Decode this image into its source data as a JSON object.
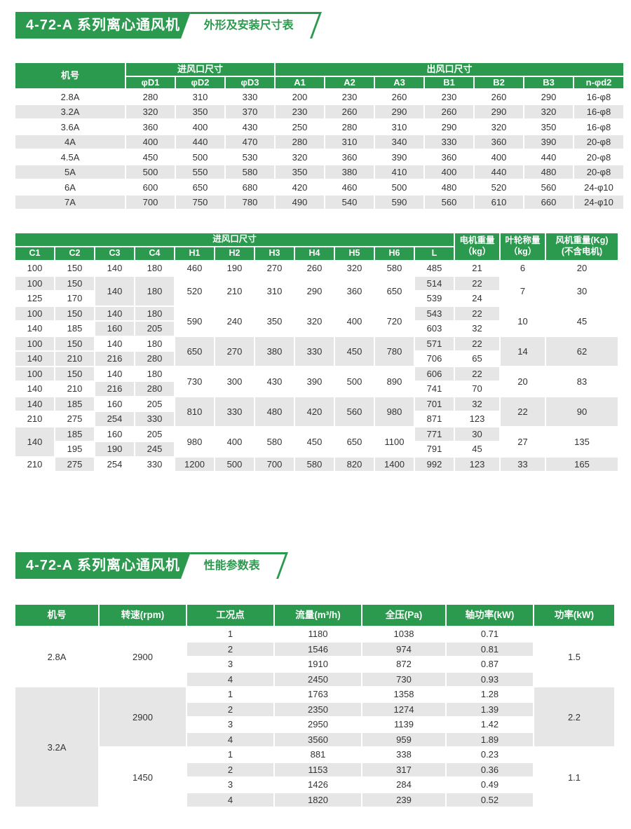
{
  "colors": {
    "green": "#2b9a4e",
    "stripe": "#e6e6e6",
    "text": "#333333",
    "page_bg": "#ffffff"
  },
  "banners": [
    {
      "title": "4-72-A 系列离心通风机",
      "tag": "外形及安装尺寸表"
    },
    {
      "title": "4-72-A 系列离心通风机",
      "tag": "性能参数表"
    }
  ],
  "table1": {
    "header": {
      "model": "机号",
      "inlet_group": "进风口尺寸",
      "outlet_group": "出风口尺寸",
      "cols": [
        "φD1",
        "φD2",
        "φD3",
        "A1",
        "A2",
        "A3",
        "B1",
        "B2",
        "B3",
        "n-φd2"
      ]
    },
    "rows": [
      [
        "2.8A",
        "280",
        "310",
        "330",
        "200",
        "230",
        "260",
        "230",
        "260",
        "290",
        "16-φ8"
      ],
      [
        "3.2A",
        "320",
        "350",
        "370",
        "230",
        "260",
        "290",
        "260",
        "290",
        "320",
        "16-φ8"
      ],
      [
        "3.6A",
        "360",
        "400",
        "430",
        "250",
        "280",
        "310",
        "290",
        "320",
        "350",
        "16-φ8"
      ],
      [
        "4A",
        "400",
        "440",
        "470",
        "280",
        "310",
        "340",
        "330",
        "360",
        "390",
        "20-φ8"
      ],
      [
        "4.5A",
        "450",
        "500",
        "530",
        "320",
        "360",
        "390",
        "360",
        "400",
        "440",
        "20-φ8"
      ],
      [
        "5A",
        "500",
        "550",
        "580",
        "350",
        "380",
        "410",
        "400",
        "440",
        "480",
        "20-φ8"
      ],
      [
        "6A",
        "600",
        "650",
        "680",
        "420",
        "460",
        "500",
        "480",
        "520",
        "560",
        "24-φ10"
      ],
      [
        "7A",
        "700",
        "750",
        "780",
        "490",
        "540",
        "590",
        "560",
        "610",
        "660",
        "24-φ10"
      ]
    ]
  },
  "table2": {
    "header": {
      "inlet_group": "进风口尺寸",
      "cols": [
        "C1",
        "C2",
        "C3",
        "C4",
        "H1",
        "H2",
        "H3",
        "H4",
        "H5",
        "H6",
        "L"
      ],
      "motor": {
        "l1": "电机重量",
        "l2": "（kg）"
      },
      "impeller": {
        "l1": "叶轮称量",
        "l2": "（kg）"
      },
      "fan": {
        "l1": "风机重量(Kg)",
        "l2": "(不含电机)"
      }
    },
    "rows": [
      [
        "100",
        "150",
        "140",
        "180",
        "460",
        "190",
        "270",
        "260",
        "320",
        "580",
        "485",
        "21",
        "6",
        "20"
      ],
      [
        [
          "100",
          1,
          1
        ],
        [
          "150",
          1,
          1
        ],
        [
          "140",
          2,
          1
        ],
        [
          "180",
          2,
          1
        ],
        [
          "520",
          2,
          0
        ],
        [
          "210",
          2,
          0
        ],
        [
          "310",
          2,
          0
        ],
        [
          "290",
          2,
          0
        ],
        [
          "360",
          2,
          0
        ],
        [
          "650",
          2,
          0
        ],
        [
          "514",
          1,
          1
        ],
        [
          "22",
          1,
          1
        ],
        [
          "7",
          2,
          0
        ],
        [
          "30",
          2,
          0
        ]
      ],
      [
        "125",
        "170",
        "539",
        "24"
      ],
      [
        [
          "100",
          1,
          1
        ],
        [
          "150",
          1,
          1
        ],
        [
          "140",
          1,
          1
        ],
        [
          "180",
          1,
          1
        ],
        [
          "590",
          2,
          0
        ],
        [
          "240",
          2,
          0
        ],
        [
          "350",
          2,
          0
        ],
        [
          "320",
          2,
          0
        ],
        [
          "400",
          2,
          0
        ],
        [
          "720",
          2,
          0
        ],
        [
          "543",
          1,
          1
        ],
        [
          "22",
          1,
          1
        ],
        [
          "10",
          2,
          0
        ],
        [
          "45",
          2,
          0
        ]
      ],
      [
        "140",
        "185",
        [
          "160",
          1,
          1
        ],
        [
          "205",
          1,
          1
        ],
        "603",
        "32"
      ],
      [
        [
          "100",
          1,
          1
        ],
        [
          "150",
          1,
          1
        ],
        "140",
        "180",
        [
          "650",
          2,
          1
        ],
        [
          "270",
          2,
          1
        ],
        [
          "380",
          2,
          1
        ],
        [
          "330",
          2,
          1
        ],
        [
          "450",
          2,
          1
        ],
        [
          "780",
          2,
          1
        ],
        [
          "571",
          1,
          1
        ],
        [
          "22",
          1,
          1
        ],
        [
          "14",
          2,
          1
        ],
        [
          "62",
          2,
          1
        ]
      ],
      [
        [
          "140",
          1,
          1
        ],
        [
          "210",
          1,
          1
        ],
        [
          "216",
          1,
          1
        ],
        [
          "280",
          1,
          1
        ],
        "706",
        "65"
      ],
      [
        [
          "100",
          1,
          1
        ],
        [
          "150",
          1,
          1
        ],
        "140",
        "180",
        [
          "730",
          2,
          0
        ],
        [
          "300",
          2,
          0
        ],
        [
          "430",
          2,
          0
        ],
        [
          "390",
          2,
          0
        ],
        [
          "500",
          2,
          0
        ],
        [
          "890",
          2,
          0
        ],
        [
          "606",
          1,
          1
        ],
        [
          "22",
          1,
          1
        ],
        [
          "20",
          2,
          0
        ],
        [
          "83",
          2,
          0
        ]
      ],
      [
        "140",
        "210",
        [
          "216",
          1,
          1
        ],
        [
          "280",
          1,
          1
        ],
        "741",
        "70"
      ],
      [
        [
          "140",
          1,
          1
        ],
        [
          "185",
          1,
          1
        ],
        "160",
        "205",
        [
          "810",
          2,
          1
        ],
        [
          "330",
          2,
          1
        ],
        [
          "480",
          2,
          1
        ],
        [
          "420",
          2,
          1
        ],
        [
          "560",
          2,
          1
        ],
        [
          "980",
          2,
          1
        ],
        [
          "701",
          1,
          1
        ],
        [
          "32",
          1,
          1
        ],
        [
          "22",
          2,
          1
        ],
        [
          "90",
          2,
          1
        ]
      ],
      [
        "210",
        "275",
        [
          "254",
          1,
          1
        ],
        [
          "330",
          1,
          1
        ],
        "871",
        "123"
      ],
      [
        [
          "140",
          2,
          1
        ],
        [
          "185",
          1,
          1
        ],
        "160",
        "205",
        [
          "980",
          2,
          0
        ],
        [
          "400",
          2,
          0
        ],
        [
          "580",
          2,
          0
        ],
        [
          "450",
          2,
          0
        ],
        [
          "650",
          2,
          0
        ],
        [
          "1100",
          2,
          0
        ],
        [
          "771",
          1,
          1
        ],
        [
          "30",
          1,
          1
        ],
        [
          "27",
          2,
          0
        ],
        [
          "135",
          2,
          0
        ]
      ],
      [
        "195",
        [
          "190",
          1,
          1
        ],
        [
          "245",
          1,
          1
        ],
        "791",
        "45"
      ],
      [
        "210",
        [
          "275",
          1,
          1
        ],
        "254",
        "330",
        [
          "1200",
          1,
          1
        ],
        [
          "500",
          1,
          1
        ],
        [
          "700",
          1,
          1
        ],
        [
          "580",
          1,
          1
        ],
        [
          "820",
          1,
          1
        ],
        [
          "1400",
          1,
          1
        ],
        [
          "992",
          1,
          1
        ],
        [
          "123",
          1,
          1
        ],
        [
          "33",
          1,
          1
        ],
        [
          "165",
          1,
          1
        ]
      ]
    ]
  },
  "table3": {
    "headers": [
      "机号",
      "转速(rpm)",
      "工况点",
      "流量(m³/h)",
      "全压(Pa)",
      "轴功率(kW)",
      "功率(kW)"
    ],
    "groups": [
      {
        "model": "2.8A",
        "model_rows": 4,
        "model_shade": 0,
        "speed": "2900",
        "speed_shade": 0,
        "power": "1.5",
        "power_shade": 0,
        "rows": [
          [
            "1",
            "1180",
            "1038",
            "0.71"
          ],
          [
            "2",
            "1546",
            "974",
            "0.81"
          ],
          [
            "3",
            "1910",
            "872",
            "0.87"
          ],
          [
            "4",
            "2450",
            "730",
            "0.93"
          ]
        ]
      },
      {
        "model": "3.2A",
        "model_rows": 8,
        "model_shade": 1,
        "speed": "2900",
        "speed_shade": 1,
        "power": "2.2",
        "power_shade": 1,
        "rows": [
          [
            "1",
            "1763",
            "1358",
            "1.28"
          ],
          [
            "2",
            "2350",
            "1274",
            "1.39"
          ],
          [
            "3",
            "2950",
            "1139",
            "1.42"
          ],
          [
            "4",
            "3560",
            "959",
            "1.89"
          ]
        ]
      },
      {
        "model": null,
        "model_rows": 0,
        "model_shade": 0,
        "speed": "1450",
        "speed_shade": 0,
        "power": "1.1",
        "power_shade": 0,
        "rows": [
          [
            "1",
            "881",
            "338",
            "0.23"
          ],
          [
            "2",
            "1153",
            "317",
            "0.36"
          ],
          [
            "3",
            "1426",
            "284",
            "0.49"
          ],
          [
            "4",
            "1820",
            "239",
            "0.52"
          ]
        ]
      }
    ]
  }
}
